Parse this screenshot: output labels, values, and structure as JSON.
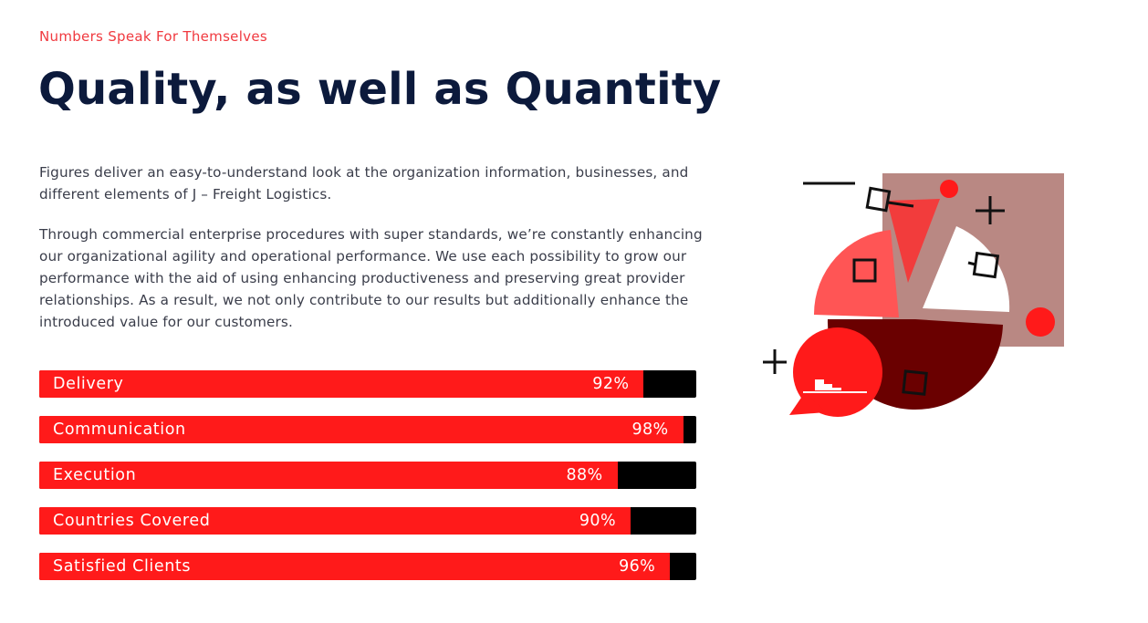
{
  "header": {
    "eyebrow": "Numbers Speak For Themselves",
    "title": "Quality, as well as Quantity"
  },
  "content": {
    "paragraphs": [
      "Figures deliver an easy-to-understand look at the organization information, businesses, and different elements of J – Freight Logistics.",
      "Through commercial enterprise procedures with super standards, we’re constantly enhancing our organizational agility and operational performance. We use each possibility to grow our performance with the aid of using enhancing productiveness and preserving great provider relationships. As a result, we not only contribute to our results but additionally enhance the introduced value for our customers."
    ]
  },
  "stats": [
    {
      "label": "Delivery",
      "percent": 92,
      "value": "92%"
    },
    {
      "label": "Communication",
      "percent": 98,
      "value": "98%"
    },
    {
      "label": "Execution",
      "percent": 88,
      "value": "88%"
    },
    {
      "label": "Countries Covered",
      "percent": 90,
      "value": "90%"
    },
    {
      "label": "Satisfied Clients",
      "percent": 96,
      "value": "96%"
    }
  ],
  "colors": {
    "accent": "#ff1a1a",
    "track": "#000000",
    "heading": "#0c1a3c",
    "eyebrow": "#f0393f"
  },
  "illustration": {
    "icon": "pie-chart-illustration"
  }
}
